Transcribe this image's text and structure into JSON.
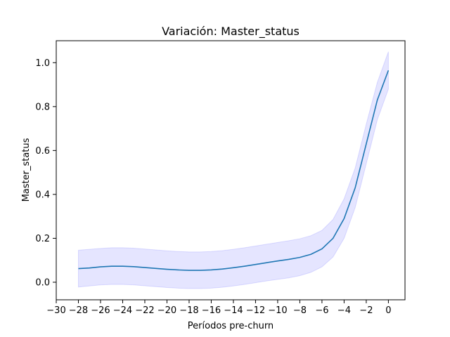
{
  "chart_data": {
    "type": "line",
    "title": "Variación: Master_status",
    "xlabel": "Períodos pre-churn",
    "ylabel": "Master_status",
    "xlim": [
      -30,
      1.5
    ],
    "ylim": [
      -0.08,
      1.1
    ],
    "xticks": [
      -30,
      -28,
      -26,
      -24,
      -22,
      -20,
      -18,
      -16,
      -14,
      -12,
      -10,
      -8,
      -6,
      -4,
      -2,
      0
    ],
    "xtick_labels": [
      "−30",
      "−28",
      "−26",
      "−24",
      "−22",
      "−20",
      "−18",
      "−16",
      "−14",
      "−12",
      "−10",
      "−8",
      "−6",
      "−4",
      "−2",
      "0"
    ],
    "yticks": [
      0.0,
      0.2,
      0.4,
      0.6,
      0.8,
      1.0
    ],
    "ytick_labels": [
      "0.0",
      "0.2",
      "0.4",
      "0.6",
      "0.8",
      "1.0"
    ],
    "grid": false,
    "colors": {
      "line": "#1f77b4",
      "band": "#0000ff"
    },
    "series": [
      {
        "x": [
          -28,
          -27,
          -26,
          -25,
          -24,
          -23,
          -22,
          -21,
          -20,
          -19,
          -18,
          -17,
          -16,
          -15,
          -14,
          -13,
          -12,
          -11,
          -10,
          -9,
          -8,
          -7,
          -6,
          -5,
          -4,
          -3,
          -2,
          -1,
          0
        ],
        "values": [
          0.062,
          0.065,
          0.07,
          0.073,
          0.073,
          0.071,
          0.067,
          0.063,
          0.059,
          0.056,
          0.054,
          0.054,
          0.056,
          0.06,
          0.066,
          0.073,
          0.081,
          0.089,
          0.097,
          0.104,
          0.113,
          0.127,
          0.152,
          0.2,
          0.29,
          0.43,
          0.63,
          0.83,
          0.965
        ],
        "lower": [
          -0.022,
          -0.017,
          -0.012,
          -0.01,
          -0.01,
          -0.012,
          -0.016,
          -0.02,
          -0.024,
          -0.027,
          -0.029,
          -0.029,
          -0.027,
          -0.023,
          -0.017,
          -0.01,
          -0.002,
          0.006,
          0.013,
          0.02,
          0.03,
          0.045,
          0.07,
          0.115,
          0.2,
          0.34,
          0.54,
          0.74,
          0.88
        ],
        "upper": [
          0.146,
          0.15,
          0.154,
          0.157,
          0.157,
          0.155,
          0.151,
          0.147,
          0.143,
          0.14,
          0.138,
          0.138,
          0.14,
          0.144,
          0.15,
          0.157,
          0.165,
          0.173,
          0.181,
          0.189,
          0.198,
          0.212,
          0.236,
          0.286,
          0.38,
          0.52,
          0.72,
          0.91,
          1.05
        ]
      }
    ]
  }
}
